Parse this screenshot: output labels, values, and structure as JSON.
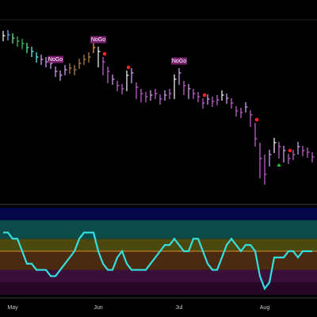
{
  "chart_data": [
    {
      "type": "ohlc",
      "categories": [
        null,
        null,
        "May",
        null,
        null,
        null,
        null,
        null,
        null,
        null,
        null,
        null,
        null,
        null,
        null,
        null,
        null,
        null,
        null,
        null,
        "Jun",
        null,
        null,
        null,
        null,
        null,
        null,
        null,
        null,
        null,
        null,
        null,
        null,
        null,
        null,
        null,
        null,
        "Jul",
        null,
        null,
        null,
        null,
        null,
        null,
        null,
        null,
        null,
        null,
        null,
        null,
        null,
        null,
        null,
        null,
        null,
        "Aug",
        null,
        null,
        null,
        null,
        null,
        null,
        null,
        null,
        null,
        null
      ],
      "close": [
        210,
        211,
        207,
        203,
        200,
        195,
        190,
        183,
        180,
        177,
        175,
        165,
        160,
        167,
        169,
        167,
        175,
        180,
        183,
        195,
        190,
        177,
        165,
        155,
        147,
        143,
        160,
        163,
        145,
        137,
        133,
        135,
        137,
        130,
        135,
        137,
        155,
        163,
        147,
        143,
        137,
        133,
        125,
        130,
        127,
        129,
        135,
        131,
        125,
        115,
        113,
        120,
        110,
        80,
        55,
        35,
        60,
        75,
        70,
        65,
        55,
        60,
        70,
        65,
        63,
        57
      ],
      "high": [
        216,
        217,
        213,
        209,
        206,
        201,
        196,
        189,
        186,
        183,
        181,
        171,
        166,
        173,
        175,
        173,
        181,
        186,
        189,
        201,
        196,
        183,
        171,
        161,
        153,
        149,
        166,
        169,
        151,
        143,
        139,
        141,
        143,
        136,
        141,
        143,
        161,
        169,
        153,
        149,
        143,
        139,
        131,
        136,
        133,
        135,
        141,
        137,
        131,
        121,
        119,
        126,
        116,
        100,
        75,
        60,
        66,
        81,
        76,
        71,
        61,
        66,
        76,
        71,
        69,
        63
      ],
      "low": [
        203,
        204,
        200,
        196,
        193,
        188,
        183,
        176,
        173,
        170,
        168,
        158,
        153,
        160,
        162,
        160,
        168,
        173,
        176,
        188,
        170,
        160,
        150,
        148,
        140,
        136,
        140,
        150,
        130,
        126,
        126,
        128,
        130,
        123,
        128,
        130,
        130,
        148,
        135,
        130,
        130,
        126,
        118,
        123,
        120,
        122,
        128,
        124,
        118,
        108,
        106,
        113,
        95,
        70,
        30,
        22,
        45,
        62,
        55,
        50,
        48,
        53,
        60,
        58,
        56,
        50
      ],
      "colors": [
        "#ffffff",
        "#7fb0ff",
        "#66ff99",
        "#33cc66",
        "#33cc66",
        "#66ff99",
        "#66ffff",
        "#66ffff",
        "#ddaaff",
        "#ddaaff",
        "#ddaaff",
        "#ddaaff",
        "#ddaaff",
        "#ddaaff",
        "#c08850",
        "#c08850",
        "#c08850",
        "#c08850",
        "#c08850",
        "#ffaa55",
        "#ffffff",
        "#cc66dd",
        "#cc66dd",
        "#ddaaff",
        "#cc66dd",
        "#cc66dd",
        "#ffffff",
        "#ddaaff",
        "#cc66dd",
        "#cc66dd",
        "#cc66dd",
        "#ddaaff",
        "#cc66dd",
        "#cc66dd",
        "#ddaaff",
        "#cc66dd",
        "#ffffff",
        "#ddaaff",
        "#cc66dd",
        "#ddaaff",
        "#cc66dd",
        "#cc66dd",
        "#cc66dd",
        "#ddaaff",
        "#cc66dd",
        "#cc66dd",
        "#ffffff",
        "#ddaaff",
        "#cc66dd",
        "#cc66dd",
        "#cc66dd",
        "#ddaaff",
        "#cc66dd",
        "#cc66dd",
        "#cc66dd",
        "#cc66dd",
        "#ddaaff",
        "#ffffff",
        "#cc66dd",
        "#ddaaff",
        "#cc66dd",
        "#cc66dd",
        "#ddaaff",
        "#cc66dd",
        "#cc66dd",
        "#cc66dd"
      ],
      "signals": [
        null,
        null,
        null,
        null,
        null,
        null,
        null,
        null,
        null,
        null,
        null,
        "NoGo",
        null,
        null,
        null,
        null,
        null,
        null,
        null,
        null,
        "NoGo",
        null,
        null,
        null,
        null,
        null,
        null,
        null,
        null,
        null,
        null,
        null,
        null,
        null,
        null,
        null,
        null,
        "NoGo",
        null,
        null,
        null,
        null,
        null,
        null,
        null,
        null,
        null,
        null,
        null,
        null,
        null,
        null,
        null,
        null,
        null,
        null,
        null,
        null,
        null,
        null,
        null,
        null,
        null,
        null,
        null,
        null
      ],
      "icons": [
        null,
        null,
        null,
        null,
        null,
        null,
        null,
        null,
        null,
        null,
        null,
        null,
        null,
        null,
        null,
        null,
        null,
        null,
        null,
        null,
        null,
        "red-dot",
        null,
        null,
        null,
        null,
        "red-dot",
        null,
        null,
        null,
        null,
        null,
        null,
        null,
        null,
        null,
        null,
        null,
        null,
        null,
        null,
        null,
        "red-dot",
        null,
        null,
        null,
        null,
        null,
        null,
        null,
        null,
        null,
        null,
        "red-dot",
        null,
        null,
        null,
        null,
        "green-triangle",
        null,
        "red-dot",
        null,
        null,
        null,
        null,
        null
      ],
      "ylim": [
        0,
        230
      ]
    },
    {
      "type": "line",
      "color": "#33e0e0",
      "values": [
        3,
        3,
        2,
        2,
        0,
        -2,
        -2,
        -3,
        -3,
        -3,
        -4,
        -4,
        -3,
        -2,
        -1,
        0,
        2,
        3,
        3,
        3,
        0,
        -2,
        -3,
        -3,
        -1,
        0,
        -2,
        -3,
        -3,
        -3,
        -3,
        -2,
        -1,
        0,
        1,
        1,
        2,
        1,
        0,
        0,
        2,
        2,
        0,
        -2,
        -3,
        -3,
        -1,
        1,
        2,
        1,
        0,
        1,
        1,
        0,
        -4,
        -6,
        -5,
        -1,
        -1,
        -1,
        0,
        0,
        -1,
        0,
        0,
        0
      ],
      "ylim": [
        -7,
        7
      ],
      "bands": [
        {
          "from": 7,
          "to": 5,
          "color": "#06064a"
        },
        {
          "from": 5,
          "to": 2,
          "color": "#0d4a4a"
        },
        {
          "from": 2,
          "to": 0,
          "color": "#4a4a10"
        },
        {
          "from": 0,
          "to": -3,
          "color": "#4a2a10"
        },
        {
          "from": -3,
          "to": -5,
          "color": "#3a0f3a"
        },
        {
          "from": -5,
          "to": -7,
          "color": "#260826"
        }
      ],
      "reference": 0,
      "reference_color": "#e08a2a"
    }
  ]
}
